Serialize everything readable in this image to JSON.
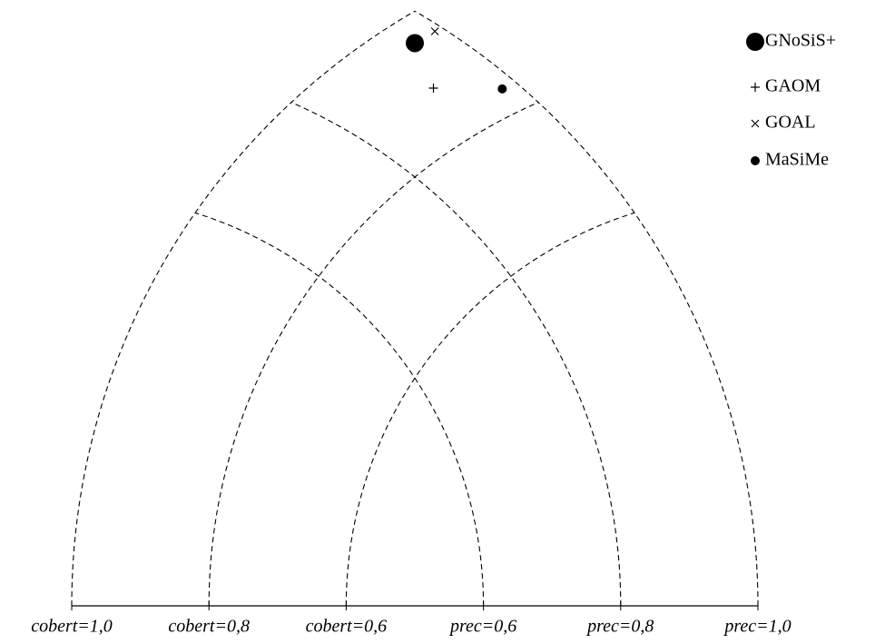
{
  "chart_data": {
    "type": "precision-recall-triangle",
    "recall_ticks": [
      {
        "value": 1.0,
        "label": "cobert=1,0"
      },
      {
        "value": 0.8,
        "label": "cobert=0,8"
      },
      {
        "value": 0.6,
        "label": "cobert=0,6"
      }
    ],
    "precision_ticks": [
      {
        "value": 0.6,
        "label": "prec=0,6"
      },
      {
        "value": 0.8,
        "label": "prec=0,8"
      },
      {
        "value": 1.0,
        "label": "prec=1,0"
      }
    ],
    "series": [
      {
        "name": "GNoSiS+",
        "marker": "big-dot",
        "color": "#000000",
        "precision": 0.96,
        "recall": 0.96
      },
      {
        "name": "GAOM",
        "marker": "plus",
        "color": "#000000",
        "precision": 0.92,
        "recall": 0.89
      },
      {
        "name": "GOAL",
        "marker": "cross",
        "color": "#000000",
        "precision": 0.99,
        "recall": 0.96
      },
      {
        "name": "MaSiMe",
        "marker": "dot",
        "color": "#000000",
        "precision": 0.98,
        "recall": 0.84
      }
    ],
    "legend": "upper right"
  }
}
